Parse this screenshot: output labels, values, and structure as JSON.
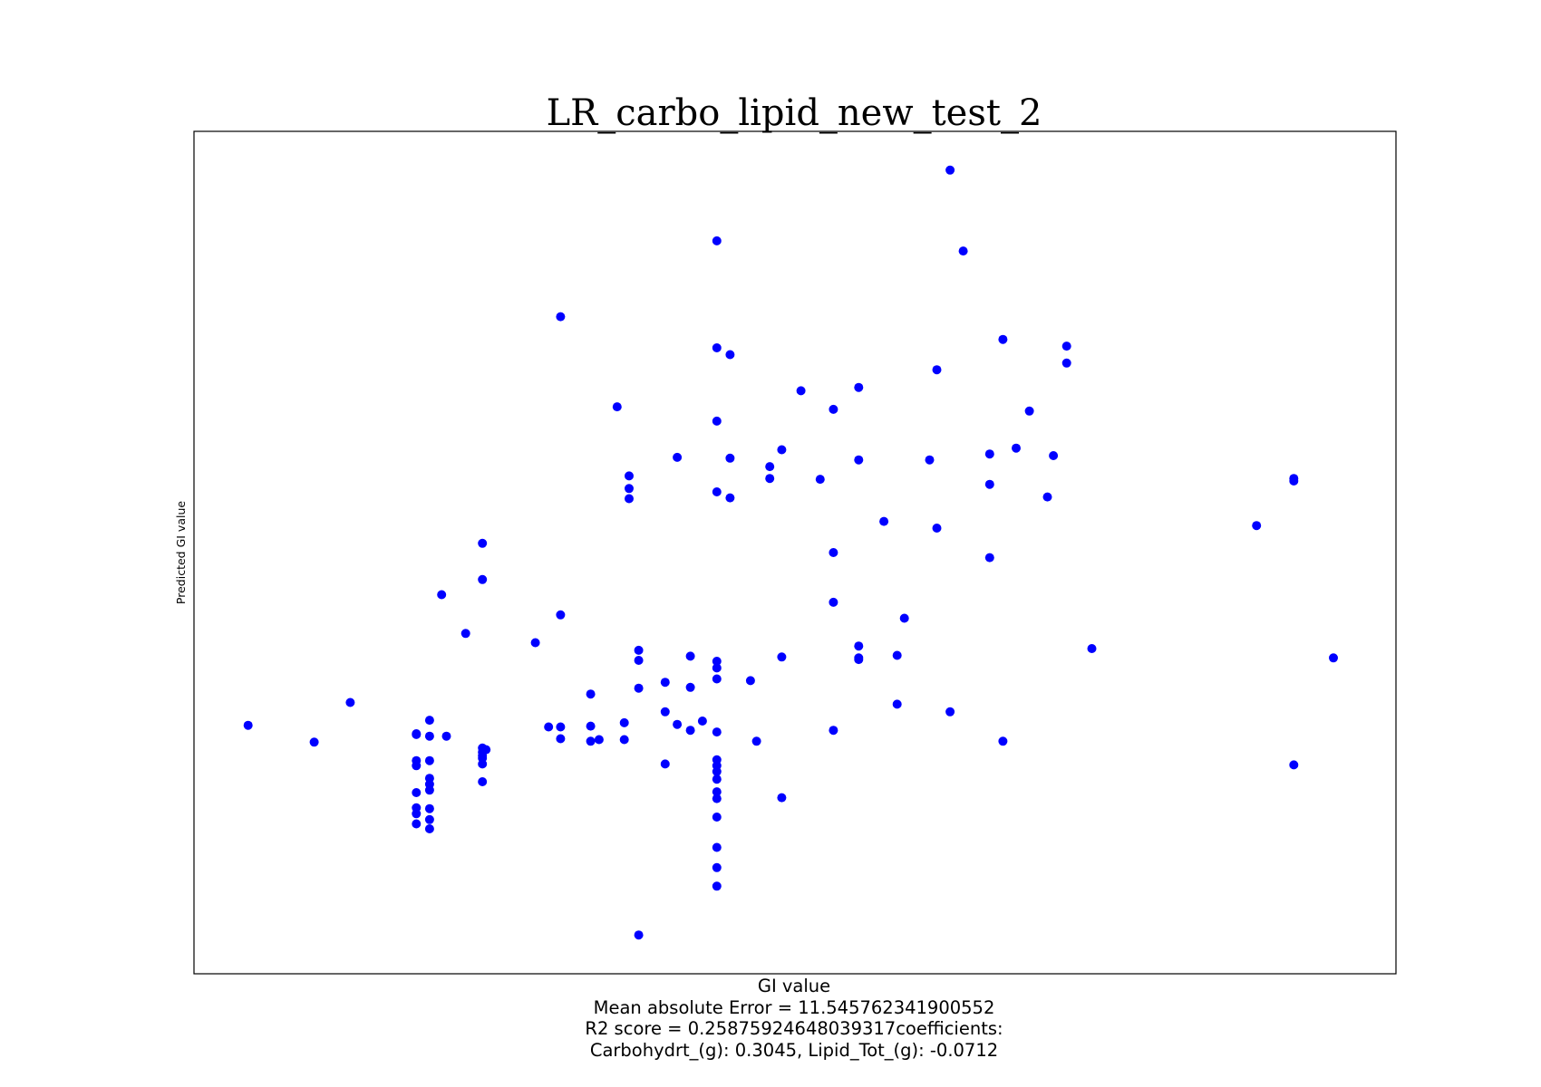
{
  "chart_data": {
    "type": "scatter",
    "title": "LR_carbo_lipid_new_test_2",
    "xlabel": [
      "GI value",
      "Mean absolute Error = 11.545762341900552",
      "R2 score = 0.25875924648039317coefficients:",
      "Carbohydrt_(g): 0.3045, Lipid_Tot_(g): -0.0712"
    ],
    "ylabel": "Predicted GI value",
    "xlim": [
      0,
      100
    ],
    "ylim": [
      0,
      100
    ],
    "grid": false,
    "xticks": [],
    "yticks": [],
    "marker_color": "#0000ff",
    "series": [
      {
        "points": [
          [
            4.5,
            29.5
          ],
          [
            10,
            27.5
          ],
          [
            13,
            32.2
          ],
          [
            18.5,
            28.5
          ],
          [
            18.5,
            28.4
          ],
          [
            18.5,
            25.3
          ],
          [
            18.5,
            24.7
          ],
          [
            18.5,
            21.5
          ],
          [
            18.5,
            19.7
          ],
          [
            18.5,
            19.0
          ],
          [
            18.5,
            17.8
          ],
          [
            19.6,
            30.1
          ],
          [
            19.6,
            28.2
          ],
          [
            19.6,
            25.3
          ],
          [
            19.6,
            23.2
          ],
          [
            19.6,
            22.5
          ],
          [
            19.6,
            21.8
          ],
          [
            19.6,
            19.6
          ],
          [
            19.6,
            18.3
          ],
          [
            19.6,
            17.2
          ],
          [
            20.6,
            45.0
          ],
          [
            21,
            28.2
          ],
          [
            22.6,
            40.4
          ],
          [
            24,
            51.1
          ],
          [
            24,
            46.8
          ],
          [
            24,
            26.8
          ],
          [
            24,
            26.3
          ],
          [
            24,
            25.9
          ],
          [
            24,
            25.6
          ],
          [
            24,
            24.9
          ],
          [
            24,
            22.8
          ],
          [
            24.3,
            26.6
          ],
          [
            28.4,
            39.3
          ],
          [
            29.5,
            29.3
          ],
          [
            30.5,
            78.0
          ],
          [
            30.5,
            42.6
          ],
          [
            30.5,
            29.3
          ],
          [
            30.5,
            27.9
          ],
          [
            33,
            33.2
          ],
          [
            33,
            29.4
          ],
          [
            33,
            27.6
          ],
          [
            33.7,
            27.8
          ],
          [
            35.2,
            67.3
          ],
          [
            35.8,
            27.8
          ],
          [
            35.8,
            29.8
          ],
          [
            36.2,
            59.1
          ],
          [
            36.2,
            57.6
          ],
          [
            36.2,
            56.4
          ],
          [
            37,
            38.4
          ],
          [
            37,
            37.2
          ],
          [
            37,
            33.9
          ],
          [
            37,
            4.6
          ],
          [
            39.2,
            34.6
          ],
          [
            39.2,
            31.1
          ],
          [
            39.2,
            24.9
          ],
          [
            40.2,
            29.6
          ],
          [
            40.2,
            61.3
          ],
          [
            41.3,
            37.7
          ],
          [
            41.3,
            34.0
          ],
          [
            41.3,
            28.9
          ],
          [
            42.3,
            30.0
          ],
          [
            43.5,
            87.0
          ],
          [
            43.5,
            74.3
          ],
          [
            43.5,
            65.6
          ],
          [
            43.5,
            57.2
          ],
          [
            43.5,
            37.1
          ],
          [
            43.5,
            36.3
          ],
          [
            43.5,
            35.0
          ],
          [
            43.5,
            28.7
          ],
          [
            43.5,
            25.4
          ],
          [
            43.5,
            24.7
          ],
          [
            43.5,
            24.0
          ],
          [
            43.5,
            23.1
          ],
          [
            43.5,
            21.6
          ],
          [
            43.5,
            20.8
          ],
          [
            43.5,
            18.6
          ],
          [
            43.5,
            15.0
          ],
          [
            43.5,
            12.6
          ],
          [
            43.5,
            10.4
          ],
          [
            44.6,
            73.5
          ],
          [
            44.6,
            61.2
          ],
          [
            44.6,
            56.5
          ],
          [
            46.3,
            34.8
          ],
          [
            46.8,
            27.6
          ],
          [
            47.9,
            60.2
          ],
          [
            47.9,
            58.8
          ],
          [
            48.9,
            62.2
          ],
          [
            48.9,
            37.6
          ],
          [
            48.9,
            20.9
          ],
          [
            50.5,
            69.2
          ],
          [
            52.1,
            58.7
          ],
          [
            53.2,
            67.0
          ],
          [
            53.2,
            50.0
          ],
          [
            53.2,
            44.1
          ],
          [
            53.2,
            28.9
          ],
          [
            55.3,
            69.6
          ],
          [
            55.3,
            38.9
          ],
          [
            55.3,
            37.5
          ],
          [
            55.3,
            37.3
          ],
          [
            55.3,
            61.0
          ],
          [
            57.4,
            53.7
          ],
          [
            58.5,
            37.8
          ],
          [
            58.5,
            32.0
          ],
          [
            59.1,
            42.2
          ],
          [
            61.2,
            61.0
          ],
          [
            61.8,
            71.7
          ],
          [
            61.8,
            52.9
          ],
          [
            62.9,
            95.4
          ],
          [
            62.9,
            31.1
          ],
          [
            64.0,
            85.8
          ],
          [
            66.2,
            61.7
          ],
          [
            66.2,
            58.1
          ],
          [
            66.2,
            49.4
          ],
          [
            67.3,
            75.3
          ],
          [
            67.3,
            27.6
          ],
          [
            68.4,
            62.4
          ],
          [
            69.5,
            66.8
          ],
          [
            71.0,
            56.6
          ],
          [
            71.5,
            61.5
          ],
          [
            72.6,
            74.5
          ],
          [
            72.6,
            72.5
          ],
          [
            74.7,
            38.6
          ],
          [
            88.4,
            53.2
          ],
          [
            91.5,
            58.8
          ],
          [
            91.5,
            58.5
          ],
          [
            91.5,
            24.8
          ],
          [
            94.8,
            37.5
          ]
        ]
      }
    ]
  }
}
